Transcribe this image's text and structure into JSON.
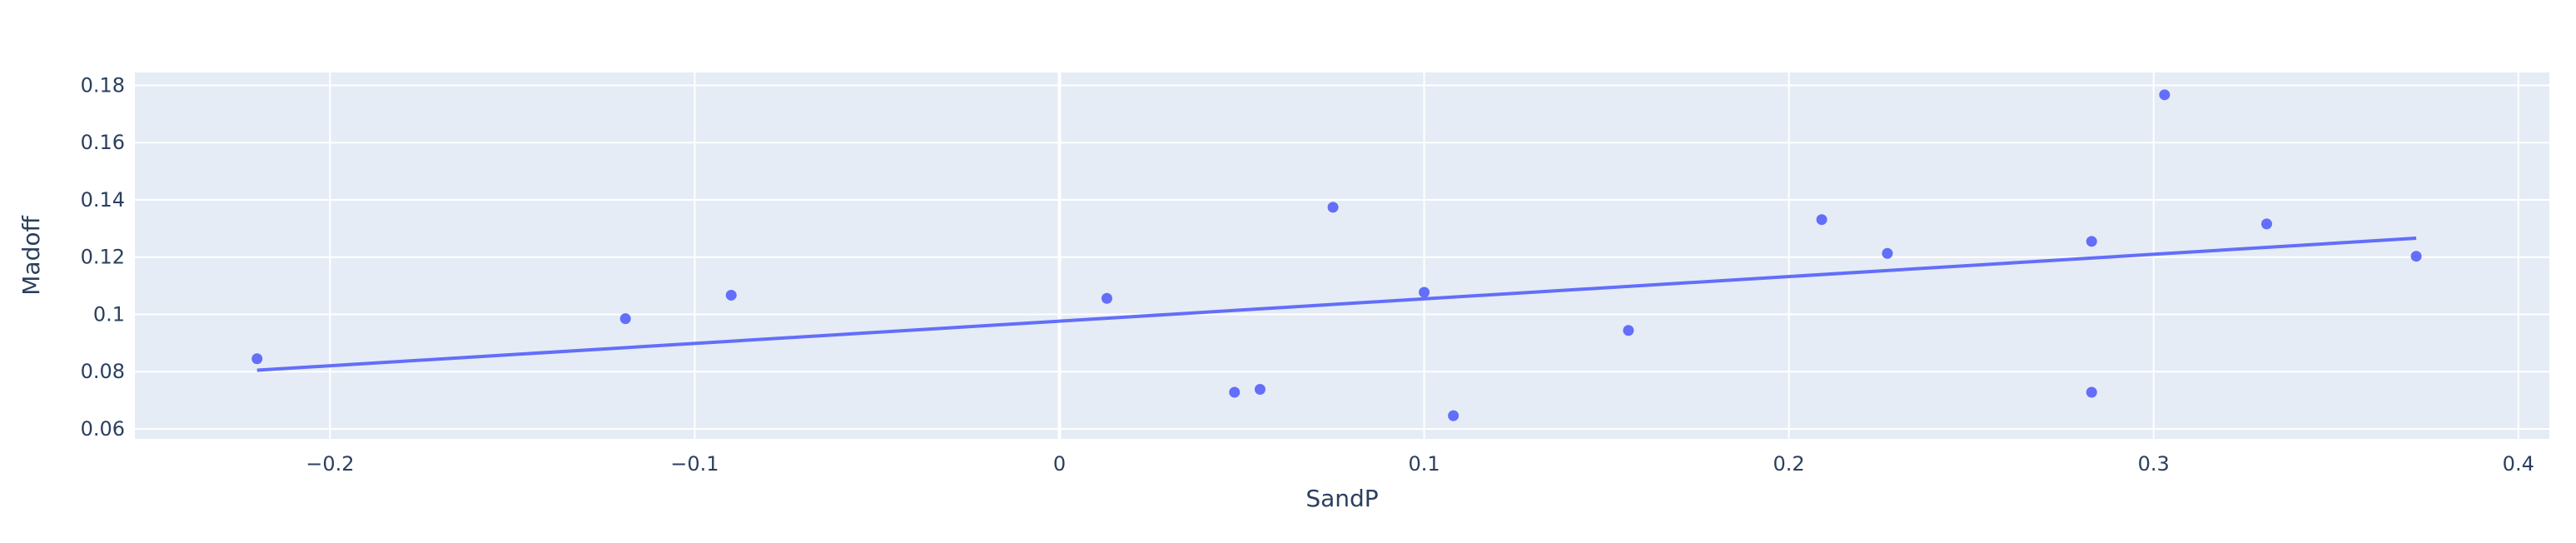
{
  "chart_data": {
    "type": "scatter",
    "xlabel": "SandP",
    "ylabel": "Madoff",
    "xlim": [
      -0.2535,
      0.4085
    ],
    "ylim": [
      0.0565,
      0.1845
    ],
    "x_ticks": [
      -0.2,
      -0.1,
      0,
      0.1,
      0.2,
      0.3,
      0.4
    ],
    "x_tick_labels": [
      "−0.2",
      "−0.1",
      "0",
      "0.1",
      "0.2",
      "0.3",
      "0.4"
    ],
    "y_ticks": [
      0.06,
      0.08,
      0.1,
      0.12,
      0.14,
      0.16,
      0.18
    ],
    "y_tick_labels": [
      "0.06",
      "0.08",
      "0.1",
      "0.12",
      "0.14",
      "0.16",
      "0.18"
    ],
    "grid": true,
    "colors": {
      "plot_background": "#e5ecf6",
      "grid": "#ffffff",
      "marker": "#636efa",
      "trendline": "#636efa",
      "text": "#2a3f5f"
    },
    "series": [
      {
        "type": "scatter",
        "points": [
          {
            "x": -0.22,
            "y": 0.0845
          },
          {
            "x": -0.119,
            "y": 0.0985
          },
          {
            "x": -0.09,
            "y": 0.1067
          },
          {
            "x": 0.013,
            "y": 0.1056
          },
          {
            "x": 0.048,
            "y": 0.0728
          },
          {
            "x": 0.055,
            "y": 0.0738
          },
          {
            "x": 0.075,
            "y": 0.1374
          },
          {
            "x": 0.1,
            "y": 0.1077
          },
          {
            "x": 0.108,
            "y": 0.0646
          },
          {
            "x": 0.156,
            "y": 0.0944
          },
          {
            "x": 0.209,
            "y": 0.1331
          },
          {
            "x": 0.227,
            "y": 0.1213
          },
          {
            "x": 0.283,
            "y": 0.1255
          },
          {
            "x": 0.283,
            "y": 0.0728
          },
          {
            "x": 0.303,
            "y": 0.1767
          },
          {
            "x": 0.331,
            "y": 0.1316
          },
          {
            "x": 0.372,
            "y": 0.1203
          }
        ]
      },
      {
        "type": "line",
        "points": [
          {
            "x": -0.22,
            "y": 0.0805
          },
          {
            "x": 0.372,
            "y": 0.1266
          }
        ]
      }
    ]
  }
}
